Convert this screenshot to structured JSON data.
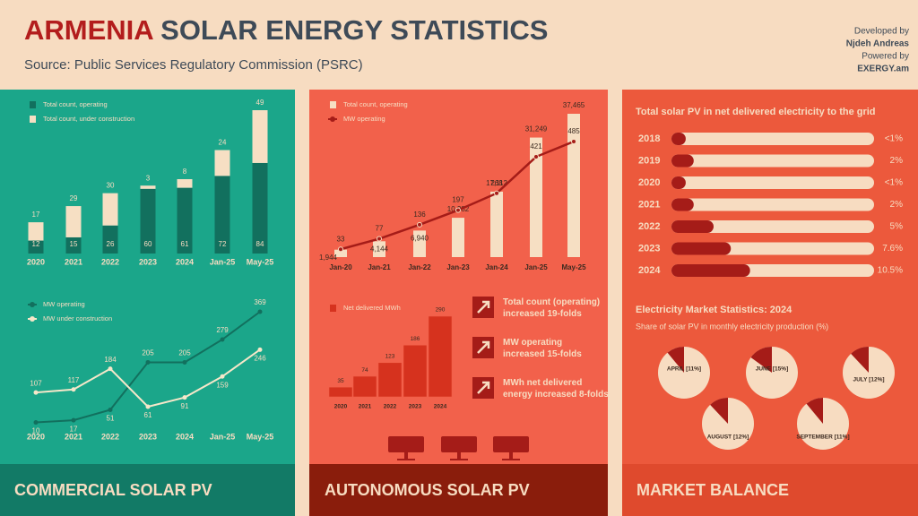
{
  "header": {
    "title_part1": "ARMENIA",
    "title_part2": "SOLAR ENERGY STATISTICS",
    "source": "Source: Public Services Regulatory Commission (PSRC)",
    "credits": [
      "Developed by",
      "Njdeh Andreas",
      "Powered by",
      "EXERGY.am"
    ]
  },
  "panels": [
    "COMMERCIAL SOLAR PV",
    "AUTONOMOUS SOLAR PV",
    "MARKET BALANCE"
  ],
  "key_facts": [
    "Total count (operating)|increased 19-folds",
    "MW operating|increased 15-folds",
    "MWh net delivered|energy increased 8-folds"
  ],
  "chart_data": [
    {
      "type": "stacked_bar",
      "categories": [
        "2020",
        "2021",
        "2022",
        "2023",
        "2024",
        "Jan-25",
        "May-25"
      ],
      "series": [
        {
          "name": "Total count, operating",
          "color": "#12705e",
          "values": [
            12,
            15,
            26,
            60,
            61,
            72,
            84
          ]
        },
        {
          "name": "Total count, under construction",
          "color": "#f6dfc3",
          "values": [
            17,
            29,
            30,
            3,
            8,
            24,
            49
          ]
        }
      ]
    },
    {
      "type": "line",
      "categories": [
        "2020",
        "2021",
        "2022",
        "2023",
        "2024",
        "Jan-25",
        "May-25"
      ],
      "series": [
        {
          "name": "MW operating",
          "color": "#12705e",
          "values": [
            10,
            17,
            51,
            205,
            205,
            279,
            369
          ]
        },
        {
          "name": "MW under construction",
          "color": "#f6e7c9",
          "values": [
            107,
            117,
            184,
            61,
            91,
            159,
            246
          ]
        }
      ]
    },
    {
      "type": "bar_line",
      "categories": [
        "Jan-20",
        "Jan-21",
        "Jan-22",
        "Jan-23",
        "Jan-24",
        "Jan-25",
        "May-25"
      ],
      "series": [
        {
          "name": "Total count, operating",
          "color": "#f6dfc3",
          "values": [
            1944,
            4144,
            6940,
            10282,
            17112,
            31249,
            37465
          ],
          "value_labels": [
            "1,944",
            "4,144",
            "6,940",
            "10,282",
            "17,112",
            "31,249",
            "37,465"
          ]
        },
        {
          "name": "MW operating",
          "color": "#a51c18",
          "axis": "y2",
          "values": [
            33,
            77,
            136,
            197,
            268,
            421,
            485
          ]
        }
      ]
    },
    {
      "type": "bar",
      "categories": [
        "2020",
        "2021",
        "2022",
        "2023",
        "2024"
      ],
      "series": [
        {
          "name": "Net delivered MWh",
          "color": "#d6321e",
          "values": [
            35,
            74,
            123,
            186,
            290
          ]
        }
      ]
    },
    {
      "type": "hbar",
      "title": "Total solar PV in net delivered electricity to the grid",
      "categories": [
        "2018",
        "2019",
        "2020",
        "2021",
        "2022",
        "2023",
        "2024"
      ],
      "values": [
        0.8,
        2,
        0.8,
        2,
        5,
        7.6,
        10.5
      ],
      "value_labels": [
        "<1%",
        "2%",
        "<1%",
        "2%",
        "5%",
        "7.6%",
        "10.5%"
      ],
      "color": "#a51c18"
    },
    {
      "type": "pie",
      "title": "Electricity Market Statistics: 2024",
      "subtitle": "Share of solar PV in monthly electricity production (%)",
      "values": [
        11,
        15,
        12,
        12,
        11
      ],
      "value_labels": [
        "APRIL [11%]",
        "JUNE [15%]",
        "JULY [12%]",
        "AUGUST [12%]",
        "SEPTEMBER [11%]"
      ],
      "color": "#a51c18"
    }
  ]
}
